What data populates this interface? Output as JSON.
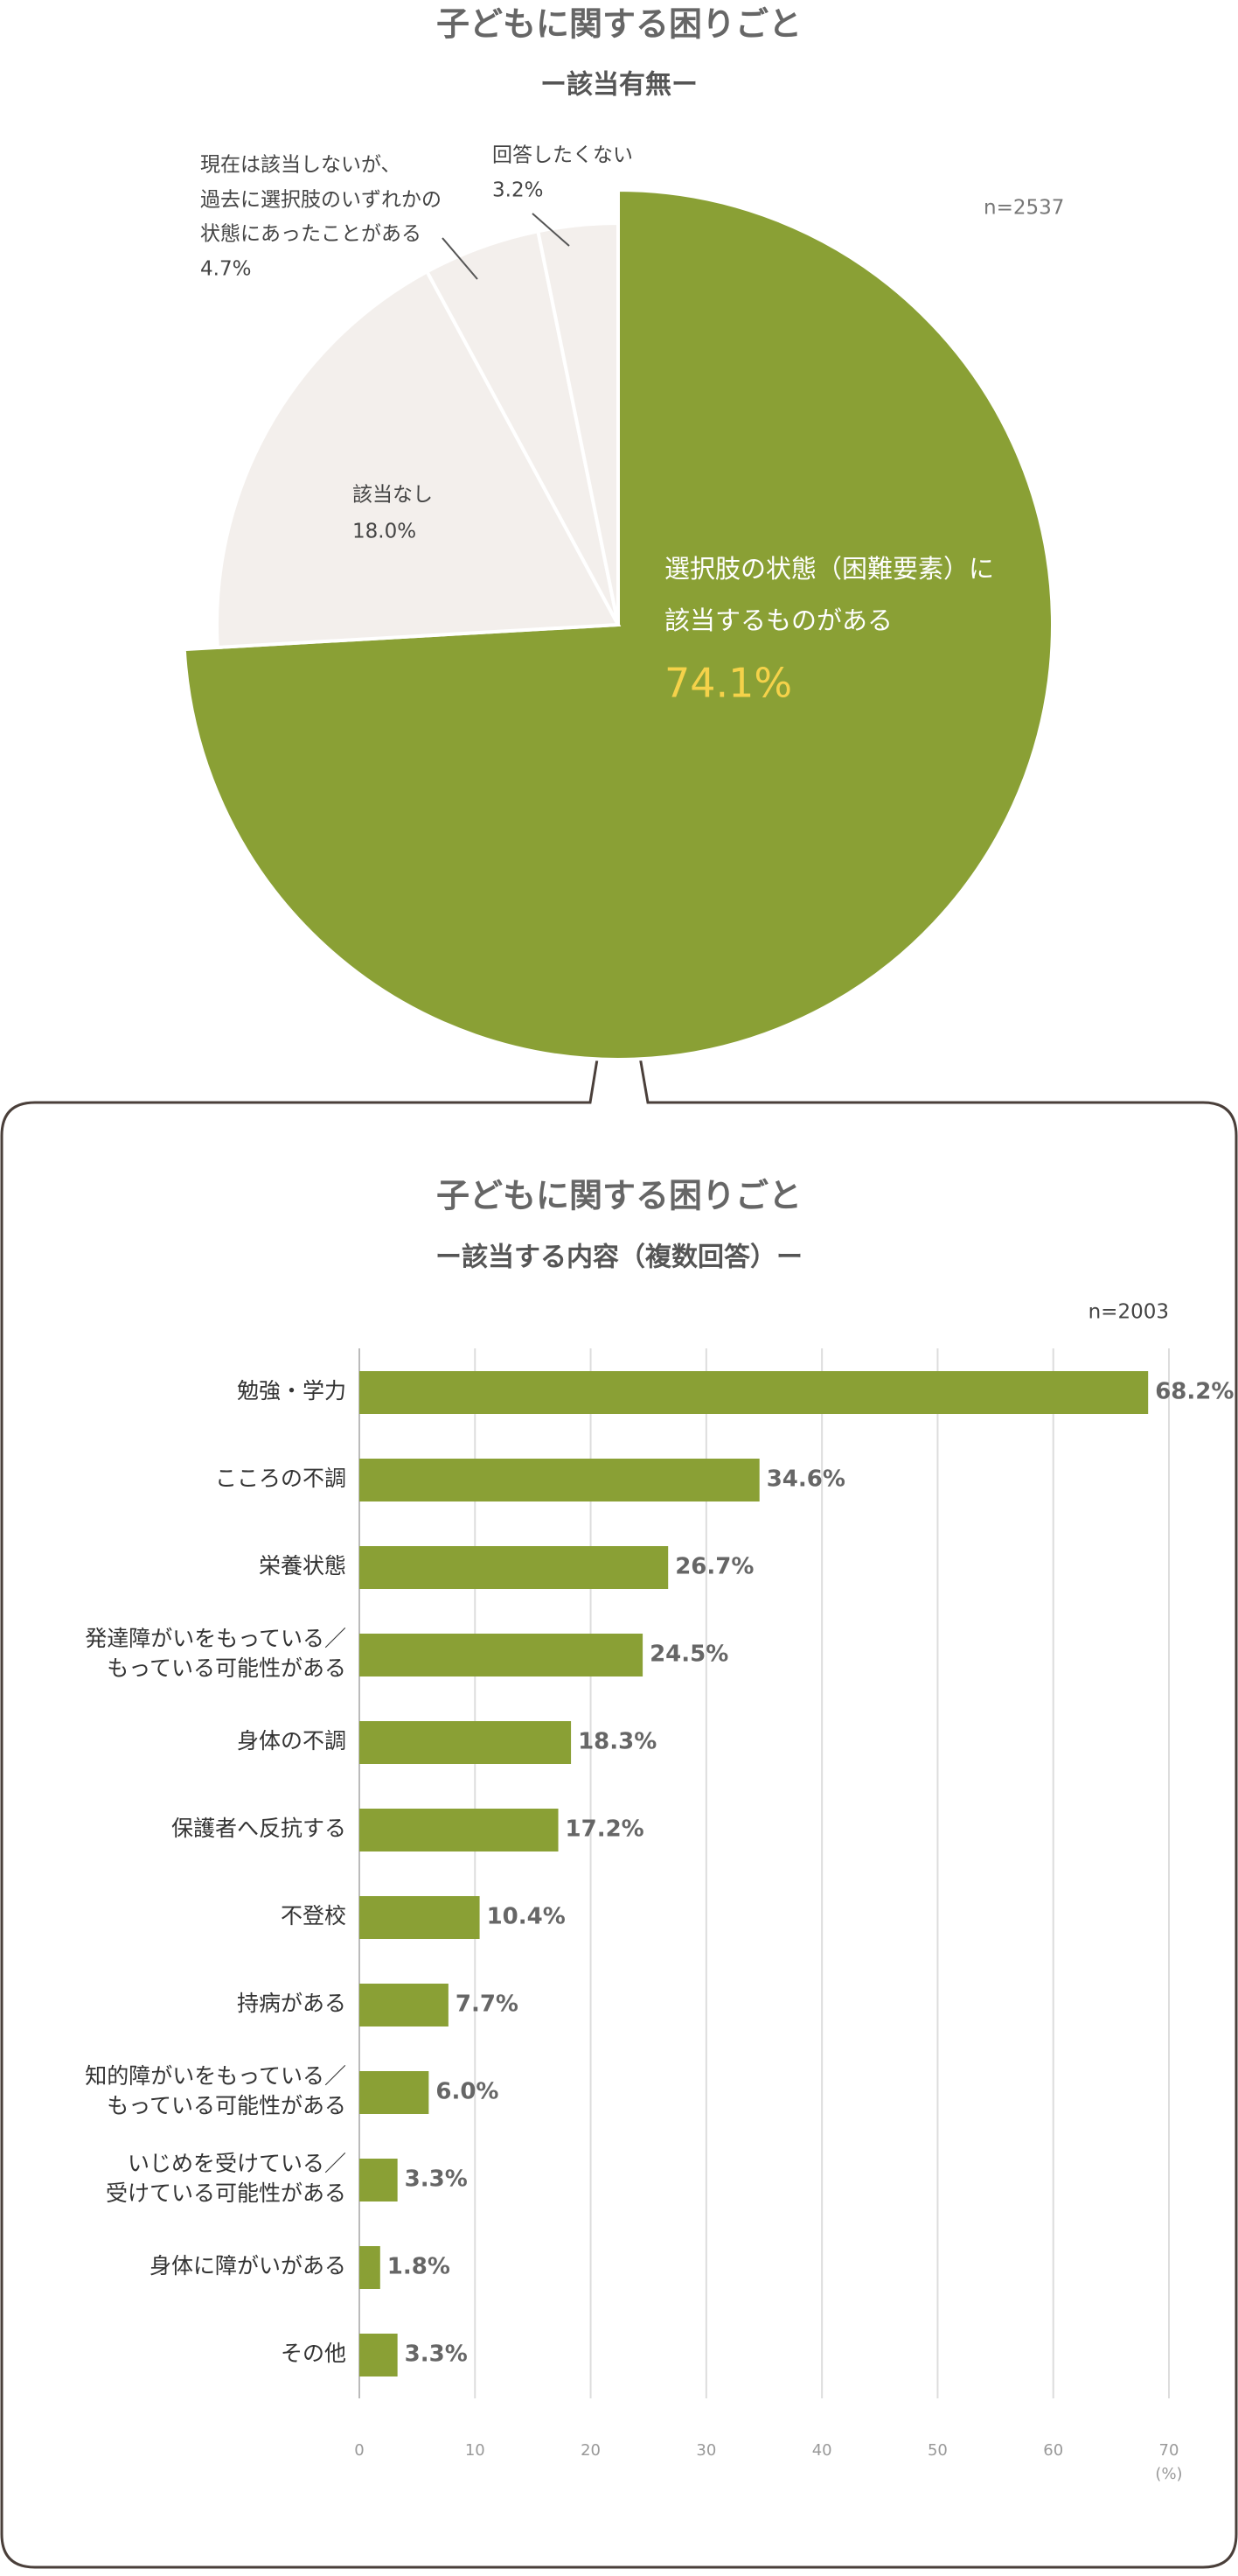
{
  "chart_data": [
    {
      "type": "pie",
      "title": "子どもに関する困りごと",
      "subtitle": "ー該当有無ー",
      "note": "n=2537",
      "labels": [
        [
          "選択肢の状態（困難要素）に",
          "該当するものがある"
        ],
        [
          "該当なし"
        ],
        [
          "現在は該当しないが、",
          "過去に選択肢のいずれかの",
          "状態にあったことがある"
        ],
        [
          "回答したくない"
        ]
      ],
      "values": [
        74.1,
        18.0,
        4.7,
        3.2
      ],
      "value_labels": [
        "74.1%",
        "18.0%",
        "4.7%",
        "3.2%"
      ],
      "colors": [
        "#8aa035",
        "#f3efec",
        "#f3efec",
        "#f3efec"
      ]
    },
    {
      "type": "barh",
      "title": "子どもに関する困りごと",
      "subtitle": "ー該当する内容（複数回答）ー",
      "note": "n=2003",
      "categories": [
        [
          "勉強・学力"
        ],
        [
          "こころの不調"
        ],
        [
          "栄養状態"
        ],
        [
          "発達障がいをもっている／",
          "もっている可能性がある"
        ],
        [
          "身体の不調"
        ],
        [
          "保護者へ反抗する"
        ],
        [
          "不登校"
        ],
        [
          "持病がある"
        ],
        [
          "知的障がいをもっている／",
          "もっている可能性がある"
        ],
        [
          "いじめを受けている／",
          "受けている可能性がある"
        ],
        [
          "身体に障がいがある"
        ],
        [
          "その他"
        ]
      ],
      "values": [
        68.2,
        34.6,
        26.7,
        24.5,
        18.3,
        17.2,
        10.4,
        7.7,
        6.0,
        3.3,
        1.8,
        3.3
      ],
      "value_labels": [
        "68.2%",
        "34.6%",
        "26.7%",
        "24.5%",
        "18.3%",
        "17.2%",
        "10.4%",
        "7.7%",
        "6.0%",
        "3.3%",
        "1.8%",
        "3.3%"
      ],
      "color": "#8aa035",
      "xlim": [
        0,
        70
      ],
      "xticks": [
        0,
        10,
        20,
        30,
        40,
        50,
        60,
        70
      ],
      "x_unit": "(%)",
      "grid": true
    }
  ]
}
